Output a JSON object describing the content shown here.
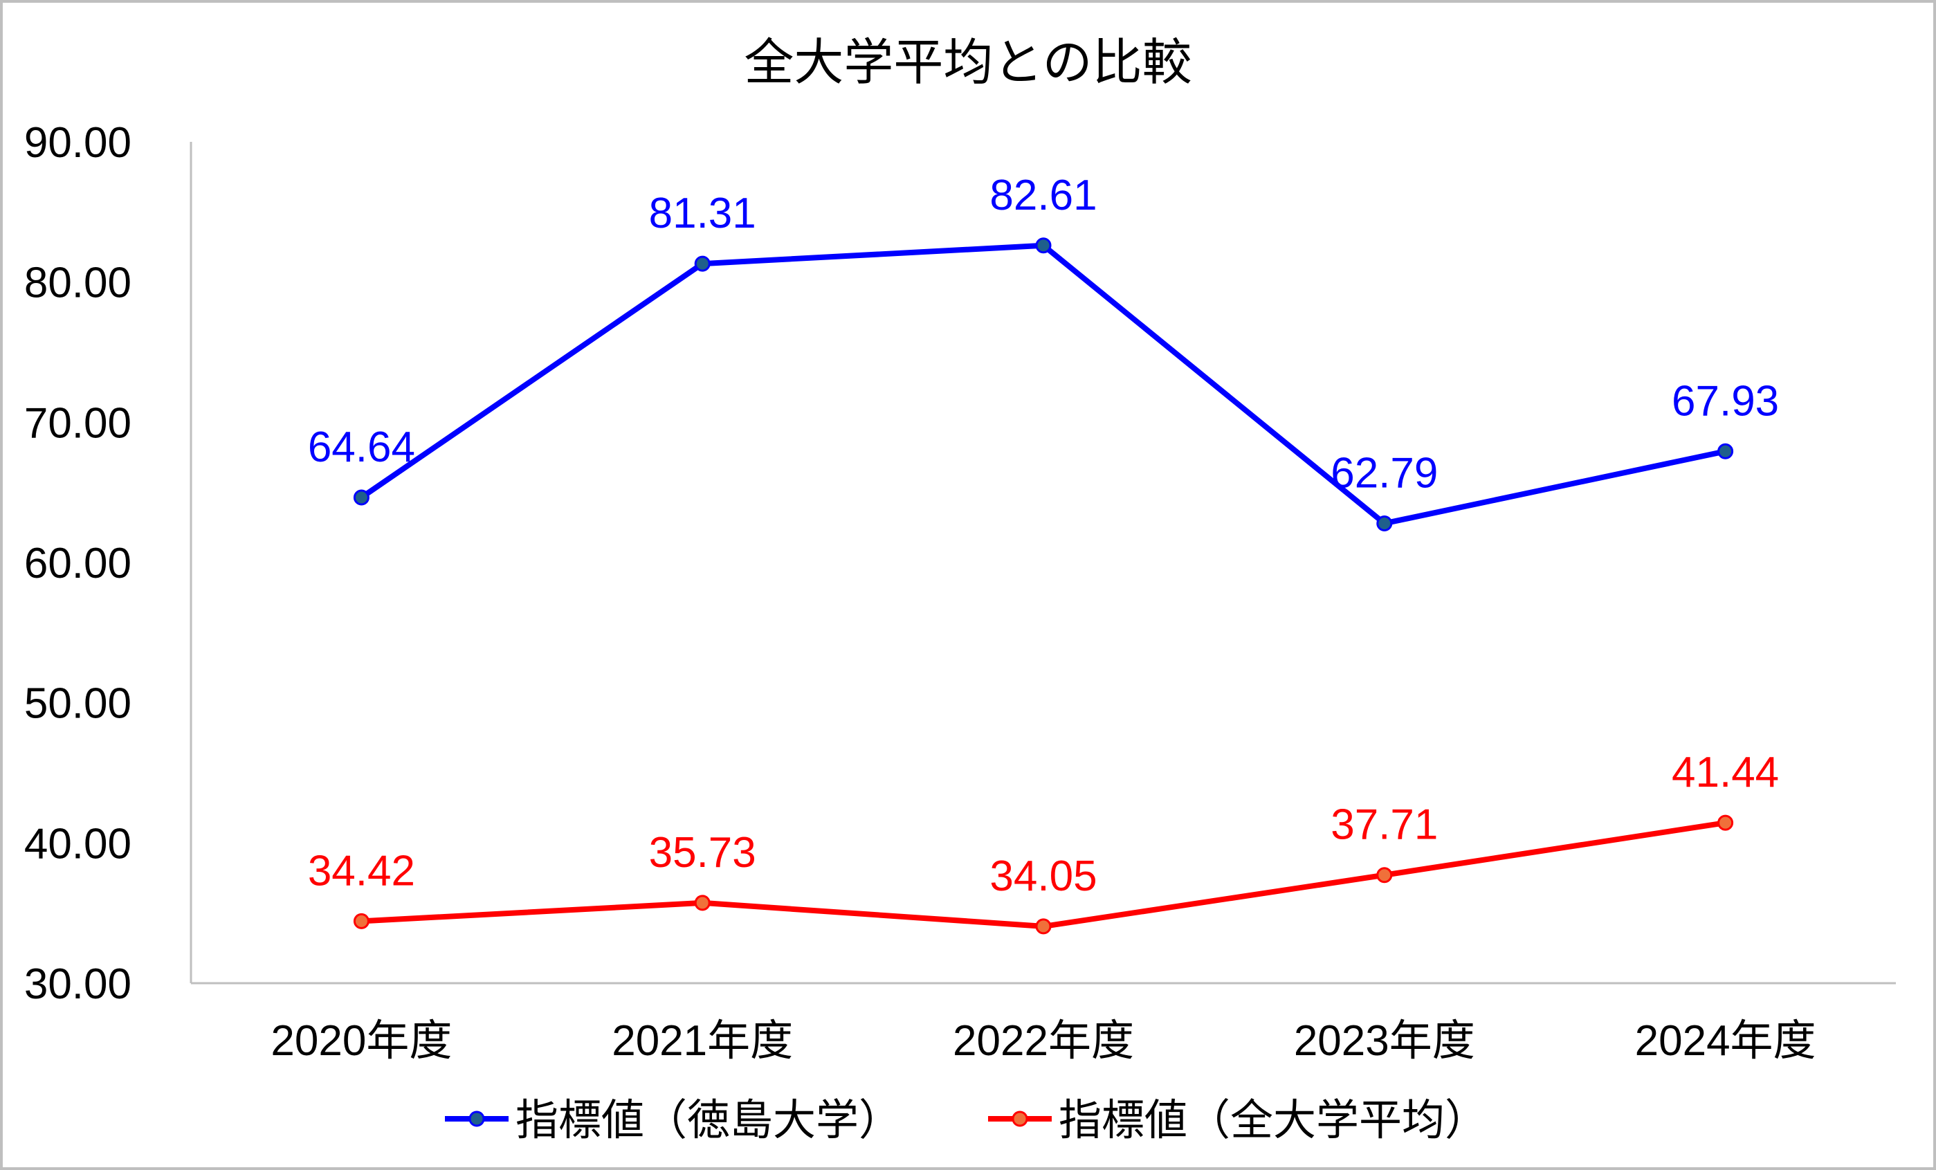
{
  "chart_data": {
    "type": "line",
    "title": "全大学平均との比較",
    "categories": [
      "2020年度",
      "2021年度",
      "2022年度",
      "2023年度",
      "2024年度"
    ],
    "ylim": [
      30,
      90
    ],
    "yticks": [
      "30.00",
      "40.00",
      "50.00",
      "60.00",
      "70.00",
      "80.00",
      "90.00"
    ],
    "grid": false,
    "legend_position": "bottom",
    "series": [
      {
        "name": "指標値（徳島大学）",
        "values": [
          64.64,
          81.31,
          82.61,
          62.79,
          67.93
        ],
        "labels": [
          "64.64",
          "81.31",
          "82.61",
          "62.79",
          "67.93"
        ],
        "color": "#0000FF",
        "marker_color": "#1F5F8B"
      },
      {
        "name": "指標値（全大学平均）",
        "values": [
          34.42,
          35.73,
          34.05,
          37.71,
          41.44
        ],
        "labels": [
          "34.42",
          "35.73",
          "34.05",
          "37.71",
          "41.44"
        ],
        "color": "#FF0000",
        "marker_color": "#F0703A"
      }
    ]
  }
}
